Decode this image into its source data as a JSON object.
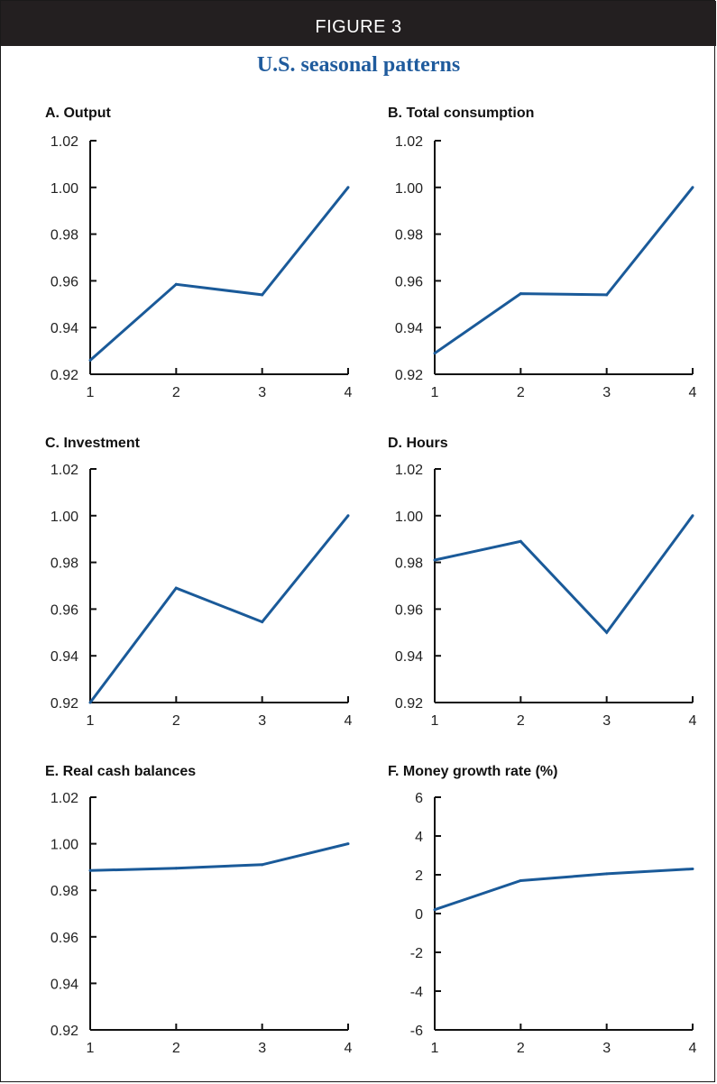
{
  "figure": {
    "label": "FIGURE 3",
    "title": "U.S. seasonal patterns"
  },
  "colors": {
    "header_bg": "#231f20",
    "title": "#1f5b9d",
    "line": "#1a5a99"
  },
  "chart_data": [
    {
      "type": "line",
      "title": "A. Output",
      "x": [
        1,
        2,
        3,
        4
      ],
      "y": [
        0.926,
        0.9585,
        0.954,
        1.0
      ],
      "ylim": [
        0.92,
        1.02
      ],
      "yticks": [
        "1.02",
        "1.00",
        "0.98",
        "0.96",
        "0.94",
        "0.92"
      ],
      "xticks": [
        "1",
        "2",
        "3",
        "4"
      ]
    },
    {
      "type": "line",
      "title": "B. Total consumption",
      "x": [
        1,
        2,
        3,
        4
      ],
      "y": [
        0.929,
        0.9545,
        0.954,
        1.0
      ],
      "ylim": [
        0.92,
        1.02
      ],
      "yticks": [
        "1.02",
        "1.00",
        "0.98",
        "0.96",
        "0.94",
        "0.92"
      ],
      "xticks": [
        "1",
        "2",
        "3",
        "4"
      ]
    },
    {
      "type": "line",
      "title": "C. Investment",
      "x": [
        1,
        2,
        3,
        4
      ],
      "y": [
        0.92,
        0.969,
        0.9545,
        1.0
      ],
      "ylim": [
        0.92,
        1.02
      ],
      "yticks": [
        "1.02",
        "1.00",
        "0.98",
        "0.96",
        "0.94",
        "0.92"
      ],
      "xticks": [
        "1",
        "2",
        "3",
        "4"
      ]
    },
    {
      "type": "line",
      "title": "D. Hours",
      "x": [
        1,
        2,
        3,
        4
      ],
      "y": [
        0.981,
        0.989,
        0.95,
        1.0
      ],
      "ylim": [
        0.92,
        1.02
      ],
      "yticks": [
        "1.02",
        "1.00",
        "0.98",
        "0.96",
        "0.94",
        "0.92"
      ],
      "xticks": [
        "1",
        "2",
        "3",
        "4"
      ]
    },
    {
      "type": "line",
      "title": "E. Real cash balances",
      "x": [
        1,
        2,
        3,
        4
      ],
      "y": [
        0.9885,
        0.9895,
        0.991,
        1.0
      ],
      "ylim": [
        0.92,
        1.02
      ],
      "yticks": [
        "1.02",
        "1.00",
        "0.98",
        "0.96",
        "0.94",
        "0.92"
      ],
      "xticks": [
        "1",
        "2",
        "3",
        "4"
      ]
    },
    {
      "type": "line",
      "title": "F. Money growth rate (%)",
      "x": [
        1,
        2,
        3,
        4
      ],
      "y": [
        0.2,
        1.7,
        2.05,
        2.3
      ],
      "ylim": [
        -6,
        6
      ],
      "yticks": [
        "6",
        "4",
        "2",
        "0",
        "-2",
        "-4",
        "-6"
      ],
      "xticks": [
        "1",
        "2",
        "3",
        "4"
      ]
    }
  ]
}
